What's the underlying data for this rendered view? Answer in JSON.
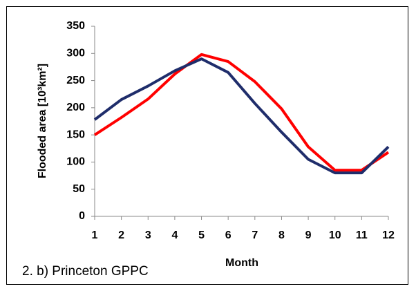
{
  "chart_data": {
    "type": "line",
    "x_label": "Month",
    "y_label": "Flooded area [10³km²]",
    "annotation": "2. b) Princeton GPPC",
    "x": [
      1,
      2,
      3,
      4,
      5,
      6,
      7,
      8,
      9,
      10,
      11,
      12
    ],
    "xlim": [
      1,
      12
    ],
    "xticks": [
      1,
      2,
      3,
      4,
      5,
      6,
      7,
      8,
      9,
      10,
      11,
      12
    ],
    "ylim": [
      0,
      350
    ],
    "yticks": [
      0,
      50,
      100,
      150,
      200,
      250,
      300,
      350
    ],
    "series": [
      {
        "color": "#ff0000",
        "values": [
          150,
          182,
          216,
          262,
          298,
          285,
          248,
          198,
          128,
          85,
          85,
          118
        ]
      },
      {
        "color": "#1f2d6b",
        "values": [
          178,
          215,
          240,
          268,
          290,
          265,
          208,
          155,
          105,
          80,
          80,
          128
        ]
      }
    ]
  }
}
